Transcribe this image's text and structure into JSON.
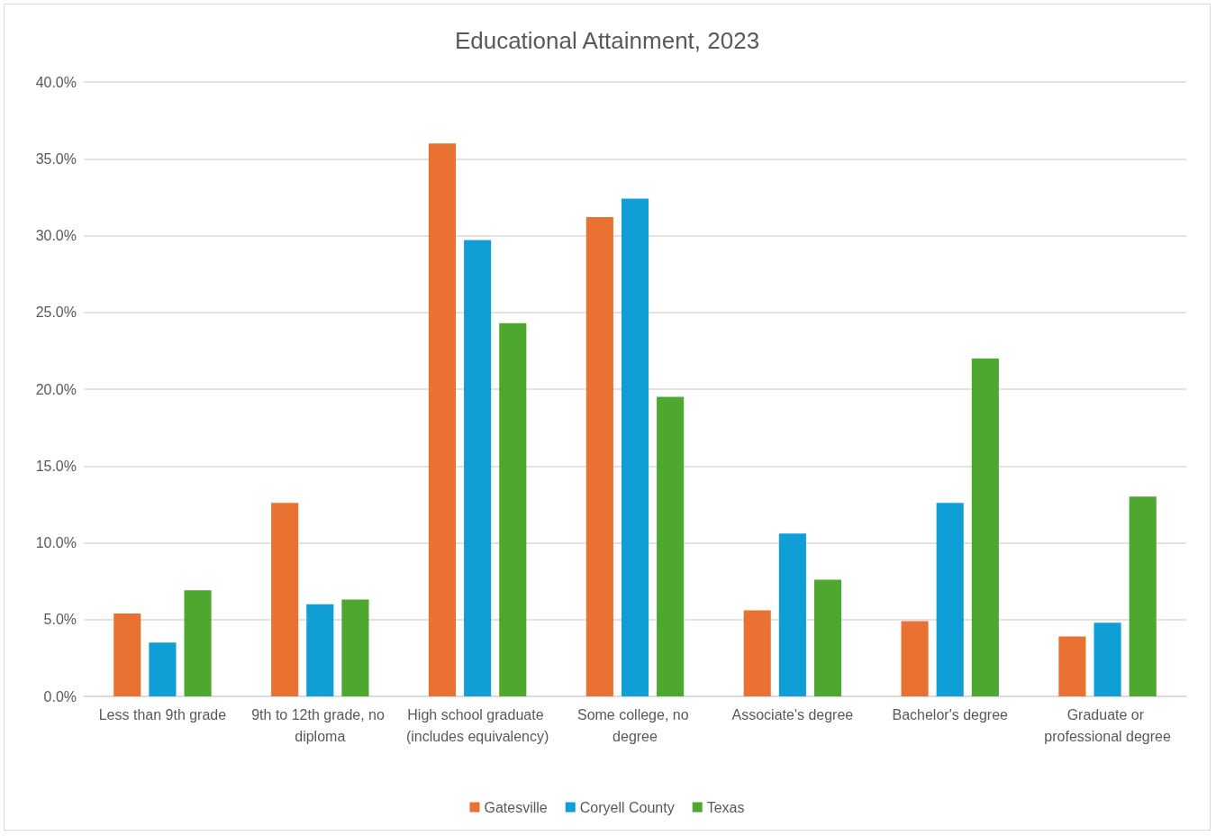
{
  "chart_data": {
    "type": "bar",
    "title": "Educational Attainment, 2023",
    "categories": [
      "Less than 9th grade",
      "9th to 12th grade, no diploma",
      "High school graduate (includes equivalency)",
      "Some college, no degree",
      "Associate's degree",
      "Bachelor's degree",
      "Graduate or professional degree"
    ],
    "series": [
      {
        "name": "Gatesville",
        "color": "#e97132",
        "values": [
          5.4,
          12.6,
          36.0,
          31.2,
          5.6,
          4.9,
          3.9
        ]
      },
      {
        "name": "Coryell County",
        "color": "#0f9ed5",
        "values": [
          3.5,
          6.0,
          29.7,
          32.4,
          10.6,
          12.6,
          4.8
        ]
      },
      {
        "name": "Texas",
        "color": "#4ea72e",
        "values": [
          6.9,
          6.3,
          24.3,
          19.5,
          7.6,
          22.0,
          13.0
        ]
      }
    ],
    "ylim": [
      0,
      40
    ],
    "yticks": [
      {
        "value": 0,
        "label": "0.0%"
      },
      {
        "value": 5,
        "label": "5.0%"
      },
      {
        "value": 10,
        "label": "10.0%"
      },
      {
        "value": 15,
        "label": "15.0%"
      },
      {
        "value": 20,
        "label": "20.0%"
      },
      {
        "value": 25,
        "label": "25.0%"
      },
      {
        "value": 30,
        "label": "30.0%"
      },
      {
        "value": 35,
        "label": "35.0%"
      },
      {
        "value": 40,
        "label": "40.0%"
      }
    ],
    "grid": "y",
    "legend": "bottom"
  }
}
